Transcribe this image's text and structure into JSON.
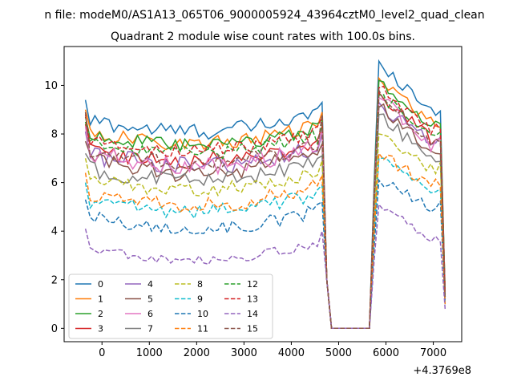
{
  "figure": {
    "suptitle": "n file: modeM0/AS1A13_065T06_9000005924_43964cztM0_level2_quad_clean",
    "title": "Quadrant 2 module wise count rates with 100.0s bins."
  },
  "chart_data": {
    "type": "line",
    "title": "Quadrant 2 module wise count rates with 100.0s bins.",
    "xlabel": "",
    "ylabel": "",
    "x_offset_text": "+4.3769e8",
    "xlim": [
      -800,
      7600
    ],
    "ylim": [
      -0.55,
      11.6
    ],
    "xticks": [
      0,
      1000,
      2000,
      3000,
      4000,
      5000,
      6000,
      7000
    ],
    "xtick_labels": [
      "0",
      "1000",
      "2000",
      "3000",
      "4000",
      "5000",
      "6000",
      "7000"
    ],
    "yticks": [
      0,
      2,
      4,
      6,
      8,
      10
    ],
    "ytick_labels": [
      "0",
      "2",
      "4",
      "6",
      "8",
      "10"
    ],
    "grid": false,
    "legend": {
      "placement": "lower-left",
      "columns": 4
    },
    "x_start": -350,
    "x_step": 100,
    "gap": {
      "from": 4850,
      "to": 5650
    },
    "series": [
      {
        "name": "0",
        "color": "#1f77b4",
        "dash": "solid",
        "level": 8.6,
        "amp": 0.35,
        "p1": 9.4,
        "p2": 11.0,
        "end": 1.4
      },
      {
        "name": "1",
        "color": "#ff7f0e",
        "dash": "solid",
        "level": 8.1,
        "amp": 0.3,
        "p1": 9.0,
        "p2": 10.3,
        "end": 1.6
      },
      {
        "name": "2",
        "color": "#2ca02c",
        "dash": "solid",
        "level": 8.0,
        "amp": 0.3,
        "p1": 8.7,
        "p2": 10.2,
        "end": 1.5
      },
      {
        "name": "3",
        "color": "#d62728",
        "dash": "solid",
        "level": 7.4,
        "amp": 0.35,
        "p1": 8.4,
        "p2": 9.7,
        "end": 1.3
      },
      {
        "name": "4",
        "color": "#9467bd",
        "dash": "solid",
        "level": 7.2,
        "amp": 0.4,
        "p1": 8.1,
        "p2": 9.3,
        "end": 1.2
      },
      {
        "name": "5",
        "color": "#8c564b",
        "dash": "solid",
        "level": 6.9,
        "amp": 0.4,
        "p1": 7.7,
        "p2": 9.1,
        "end": 1.3
      },
      {
        "name": "6",
        "color": "#e377c2",
        "dash": "solid",
        "level": 7.2,
        "amp": 0.4,
        "p1": 8.3,
        "p2": 9.5,
        "end": 1.4
      },
      {
        "name": "7",
        "color": "#7f7f7f",
        "dash": "solid",
        "level": 6.6,
        "amp": 0.35,
        "p1": 7.2,
        "p2": 8.8,
        "end": 1.2
      },
      {
        "name": "8",
        "color": "#bcbd22",
        "dash": "dashed",
        "level": 6.2,
        "amp": 0.3,
        "p1": 7.0,
        "p2": 8.0,
        "end": 1.1
      },
      {
        "name": "9",
        "color": "#17becf",
        "dash": "dashed",
        "level": 5.3,
        "amp": 0.3,
        "p1": 6.0,
        "p2": 7.0,
        "end": 1.0
      },
      {
        "name": "10",
        "color": "#1f77b4",
        "dash": "dashed",
        "level": 4.6,
        "amp": 0.3,
        "p1": 5.3,
        "p2": 6.1,
        "end": 1.0
      },
      {
        "name": "11",
        "color": "#ff7f0e",
        "dash": "dashed",
        "level": 5.6,
        "amp": 0.35,
        "p1": 6.4,
        "p2": 7.2,
        "end": 1.0
      },
      {
        "name": "12",
        "color": "#2ca02c",
        "dash": "dashed",
        "level": 7.7,
        "amp": 0.3,
        "p1": 8.5,
        "p2": 9.6,
        "end": 1.3
      },
      {
        "name": "13",
        "color": "#d62728",
        "dash": "dashed",
        "level": 7.8,
        "amp": 0.3,
        "p1": 8.8,
        "p2": 9.9,
        "end": 1.4
      },
      {
        "name": "14",
        "color": "#9467bd",
        "dash": "dashed",
        "level": 3.3,
        "amp": 0.2,
        "p1": 4.1,
        "p2": 5.1,
        "end": 0.8
      },
      {
        "name": "15",
        "color": "#8c564b",
        "dash": "dashed",
        "level": 7.3,
        "amp": 0.3,
        "p1": 8.9,
        "p2": 9.8,
        "end": 1.3
      }
    ]
  }
}
